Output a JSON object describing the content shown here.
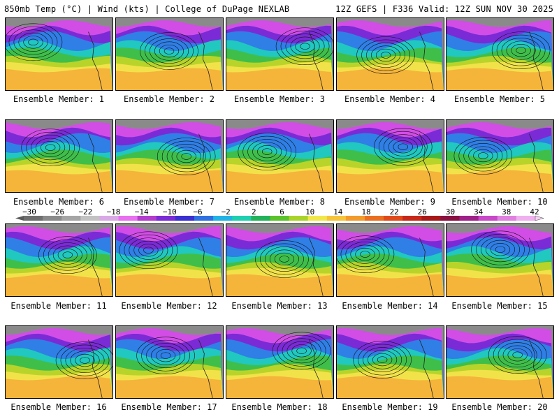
{
  "header": {
    "left": "850mb Temp (°C) | Wind (kts) | College of DuPage NEXLAB",
    "right": "12Z GEFS | F336 Valid: 12Z SUN NOV 30 2025"
  },
  "members": [
    {
      "label": "Ensemble Member: 1"
    },
    {
      "label": "Ensemble Member: 2"
    },
    {
      "label": "Ensemble Member: 3"
    },
    {
      "label": "Ensemble Member: 4"
    },
    {
      "label": "Ensemble Member: 5"
    },
    {
      "label": "Ensemble Member: 6"
    },
    {
      "label": "Ensemble Member: 7"
    },
    {
      "label": "Ensemble Member: 8"
    },
    {
      "label": "Ensemble Member: 9"
    },
    {
      "label": "Ensemble Member: 10"
    },
    {
      "label": "Ensemble Member: 11"
    },
    {
      "label": "Ensemble Member: 12"
    },
    {
      "label": "Ensemble Member: 13"
    },
    {
      "label": "Ensemble Member: 14"
    },
    {
      "label": "Ensemble Member: 15"
    },
    {
      "label": "Ensemble Member: 16"
    },
    {
      "label": "Ensemble Member: 17"
    },
    {
      "label": "Ensemble Member: 18"
    },
    {
      "label": "Ensemble Member: 19"
    },
    {
      "label": "Ensemble Member: 20"
    }
  ],
  "colorbar": {
    "ticks": [
      "−30",
      "−26",
      "−22",
      "−18",
      "−14",
      "−10",
      "−6",
      "−2",
      "2",
      "6",
      "10",
      "14",
      "18",
      "22",
      "26",
      "30",
      "34",
      "38",
      "42"
    ],
    "colors": [
      "#6f6f6f",
      "#8a8a8a",
      "#a5a5a5",
      "#c2c2c2",
      "#d9a9e6",
      "#e86ff0",
      "#b33ccd",
      "#7a2bd6",
      "#3a2fd0",
      "#2f6fe0",
      "#21b2e6",
      "#1fd0b0",
      "#22b35a",
      "#5ac22a",
      "#a8d42a",
      "#f0e84a",
      "#f6c43a",
      "#f29a2a",
      "#ea6e20",
      "#e04a1a",
      "#c8281a",
      "#a81818",
      "#8a1040",
      "#a0208a",
      "#c848c8",
      "#e080e0",
      "#f0b0f0"
    ]
  }
}
